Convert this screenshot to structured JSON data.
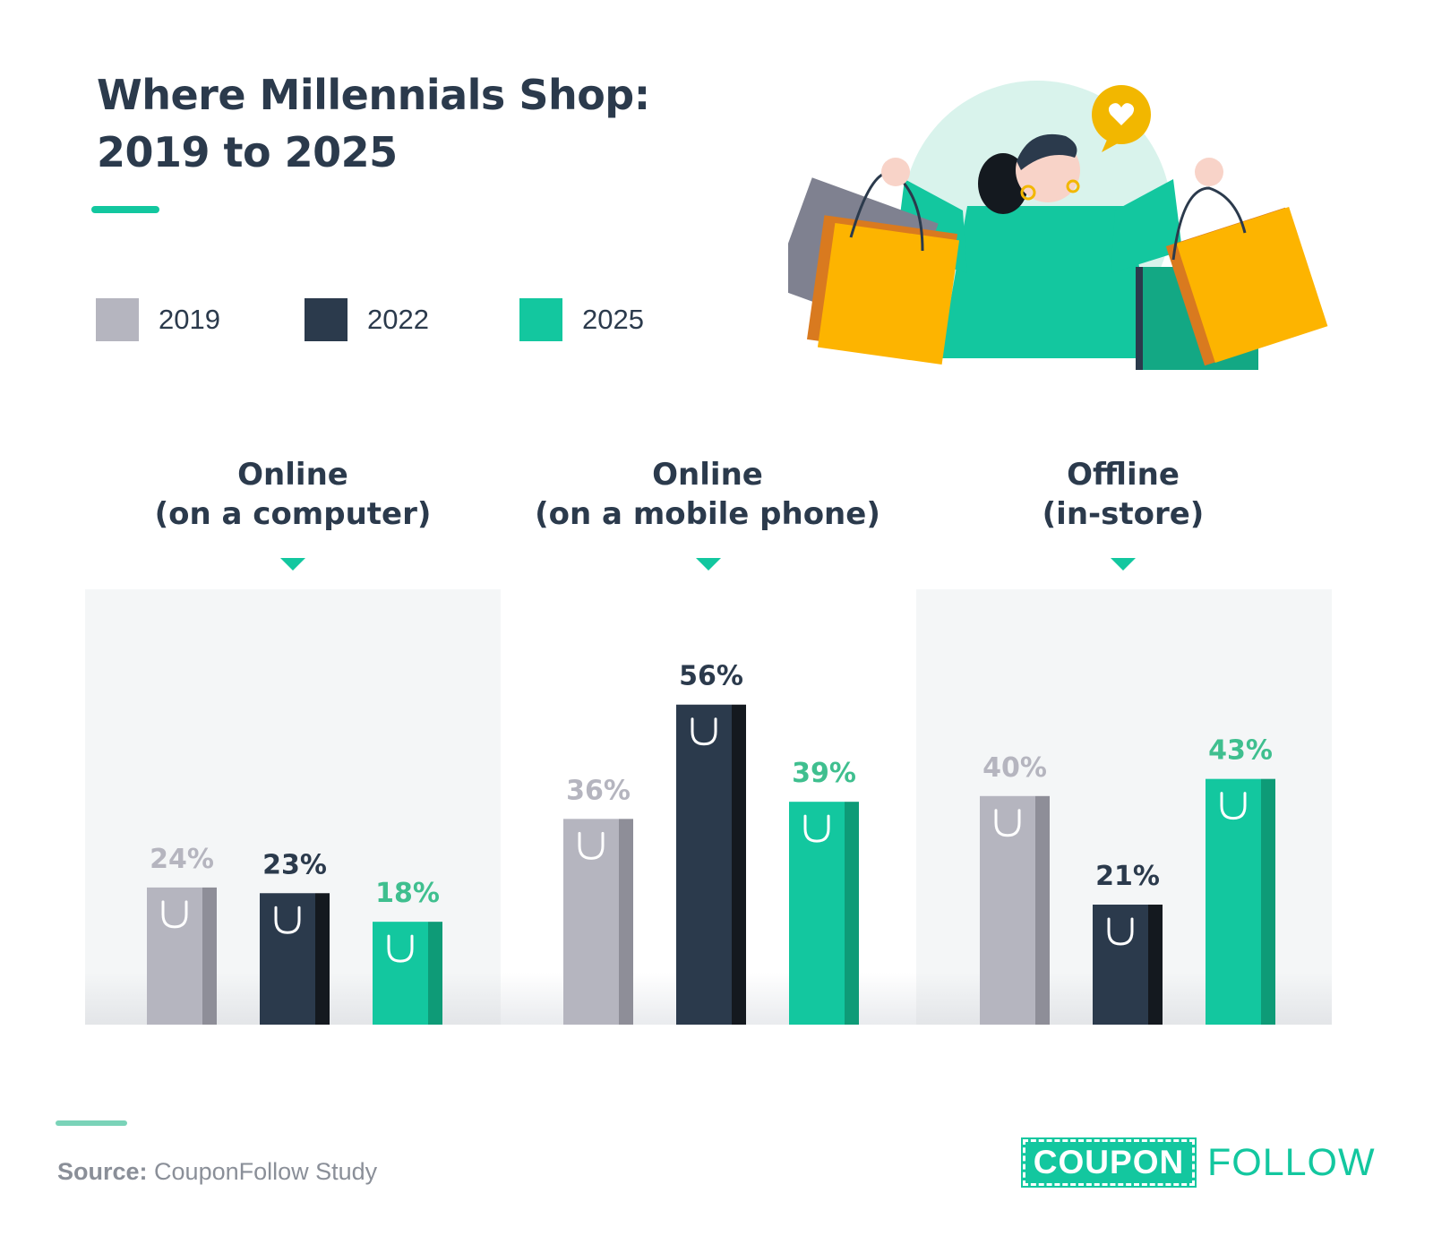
{
  "title_lines": [
    "Where Millennials Shop:",
    "2019 to 2025"
  ],
  "legend": [
    {
      "label": "2019",
      "color": "#b5b5bf"
    },
    {
      "label": "2022",
      "color": "#2b3a4c"
    },
    {
      "label": "2025",
      "color": "#13c79f"
    }
  ],
  "chart_data": {
    "type": "bar",
    "title": "Where Millennials Shop: 2019 to 2025",
    "categories": [
      "Online\n(on a computer)",
      "Online\n(on a mobile phone)",
      "Offline\n(in-store)"
    ],
    "category_lines": [
      [
        "Online",
        "(on a computer)"
      ],
      [
        "Online",
        "(on a mobile phone)"
      ],
      [
        "Offline",
        "(in-store)"
      ]
    ],
    "series": [
      {
        "name": "2019",
        "values": [
          24,
          36,
          40
        ],
        "color": "#b5b5bf",
        "shade": "#8e8e98",
        "label_color": "#b5b5bf"
      },
      {
        "name": "2022",
        "values": [
          23,
          56,
          21
        ],
        "color": "#2b3a4c",
        "shade": "#14191f",
        "label_color": "#2b3a4c"
      },
      {
        "name": "2025",
        "values": [
          18,
          39,
          43
        ],
        "color": "#13c79f",
        "shade": "#0e9b77",
        "label_color": "#3fbf8f"
      }
    ],
    "data_labels": [
      [
        "24%",
        "36%",
        "40%"
      ],
      [
        "23%",
        "56%",
        "21%"
      ],
      [
        "18%",
        "39%",
        "43%"
      ]
    ],
    "ylim": [
      0,
      60
    ],
    "legend_position": "top-left",
    "grid": false
  },
  "source": {
    "prefix": "Source:",
    "text": " CouponFollow Study"
  },
  "logo": {
    "left": "COUPON",
    "right": "FOLLOW"
  }
}
